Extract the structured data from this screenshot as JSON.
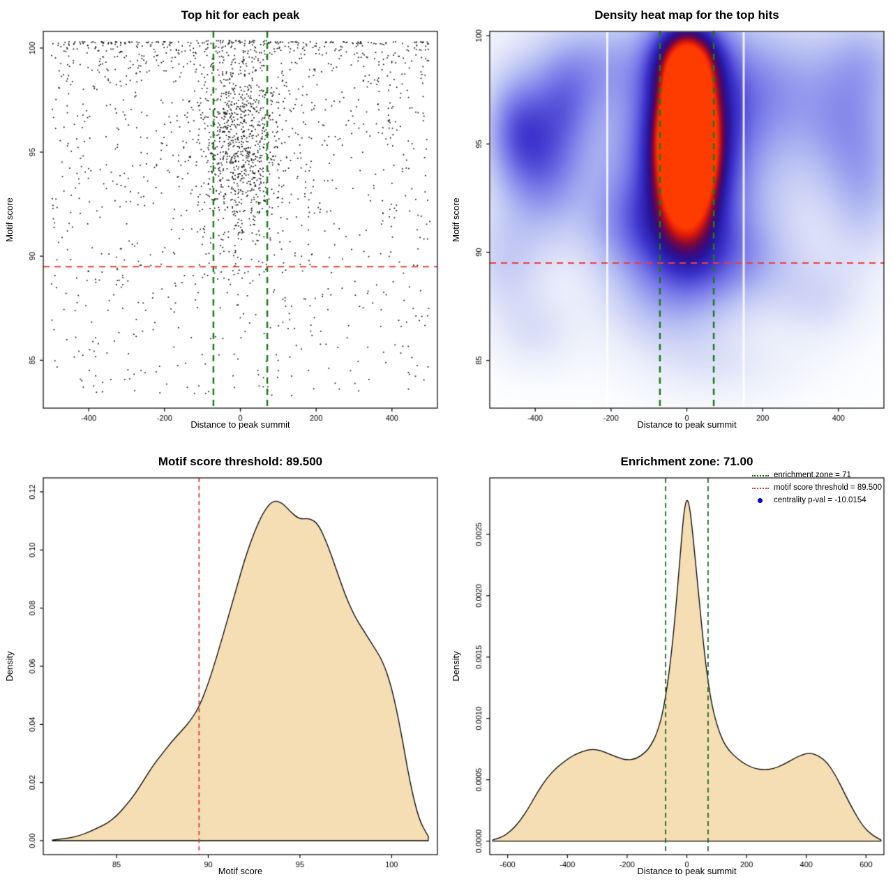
{
  "page": {
    "background": "#ffffff"
  },
  "chart_data": [
    {
      "type": "scatter",
      "title": "Top hit for each peak",
      "xlabel": "Distance to peak summit",
      "ylabel": "Motif score",
      "xlim": [
        -520,
        520
      ],
      "ylim": [
        82.7,
        100.8
      ],
      "xticks": {
        "values": [
          -400,
          -200,
          0,
          200,
          400
        ],
        "labels": [
          "-400",
          "-200",
          "0",
          "200",
          "400"
        ]
      },
      "yticks": {
        "values": [
          85,
          90,
          95,
          100
        ],
        "labels": [
          "85",
          "90",
          "95",
          "100"
        ]
      },
      "point_color": "#111111",
      "points_spec": {
        "seed": 42,
        "background": {
          "n": 1300,
          "xmin": -500,
          "xmax": 500,
          "y_base": 100.3,
          "y_span": 17,
          "y_pow": 2.2
        },
        "cluster": {
          "n": 900,
          "x_mean": 0,
          "x_sd": 55,
          "y_mean": 95.3,
          "y_sd": 2.6
        }
      },
      "lines": [
        {
          "type": "v",
          "value": -71,
          "color": "#1b7a1b",
          "width": 2.5,
          "dash": [
            9,
            7
          ]
        },
        {
          "type": "v",
          "value": 71,
          "color": "#1b7a1b",
          "width": 2.5,
          "dash": [
            9,
            7
          ]
        },
        {
          "type": "h",
          "value": 89.5,
          "color": "#f03b3b",
          "width": 2,
          "dash": [
            9,
            7
          ]
        }
      ]
    },
    {
      "type": "heatmap",
      "title": "Density heat map for the top hits",
      "xlabel": "Distance to peak summit",
      "ylabel": "Motif score",
      "xlim": [
        -520,
        520
      ],
      "ylim": [
        82.8,
        100.2
      ],
      "xticks": {
        "values": [
          -400,
          -200,
          0,
          200,
          400
        ],
        "labels": [
          "-400",
          "-200",
          "0",
          "200",
          "400"
        ]
      },
      "yticks": {
        "values": [
          85,
          90,
          95,
          100
        ],
        "labels": [
          "85",
          "90",
          "95",
          "100"
        ]
      },
      "hotspot": {
        "x": 0,
        "y": 95.8
      },
      "blobs": [
        [
          0,
          95.8,
          38,
          1.6,
          1.15
        ],
        [
          0,
          94.0,
          50,
          2.0,
          0.8
        ],
        [
          2,
          96.3,
          80,
          2.9,
          0.5
        ],
        [
          0,
          98.9,
          58,
          1.2,
          0.5
        ],
        [
          0,
          93.3,
          135,
          3.6,
          0.32
        ],
        [
          0,
          90.2,
          95,
          1.7,
          0.22
        ],
        [
          -380,
          94.3,
          75,
          2.2,
          0.3
        ],
        [
          -455,
          95.8,
          55,
          1.7,
          0.22
        ],
        [
          -320,
          97,
          60,
          1.5,
          0.16
        ],
        [
          200,
          97.6,
          110,
          2.0,
          0.17
        ],
        [
          420,
          96.2,
          90,
          2.2,
          0.18
        ],
        [
          470,
          92.8,
          70,
          2.2,
          0.14
        ],
        [
          -150,
          91.3,
          85,
          1.6,
          0.14
        ],
        [
          160,
          89.6,
          95,
          1.4,
          0.12
        ],
        [
          -60,
          87.4,
          120,
          1.6,
          0.1
        ],
        [
          350,
          87.8,
          90,
          1.4,
          0.1
        ],
        [
          -400,
          86.2,
          80,
          1.3,
          0.09
        ],
        [
          0,
          96,
          470,
          5.5,
          0.13
        ],
        [
          -250,
          98.7,
          100,
          1.4,
          0.14
        ],
        [
          100,
          84.6,
          150,
          1.2,
          0.07
        ],
        [
          -480,
          89.5,
          70,
          1.8,
          0.12
        ],
        [
          480,
          99,
          80,
          1.5,
          0.12
        ]
      ],
      "colormap": [
        {
          "t": 0.0,
          "rgb": [
            255,
            255,
            255
          ]
        },
        {
          "t": 0.08,
          "rgb": [
            235,
            238,
            250
          ]
        },
        {
          "t": 0.22,
          "rgb": [
            180,
            188,
            242
          ]
        },
        {
          "t": 0.38,
          "rgb": [
            118,
            118,
            232
          ]
        },
        {
          "t": 0.52,
          "rgb": [
            62,
            52,
            205
          ]
        },
        {
          "t": 0.64,
          "rgb": [
            38,
            22,
            158
          ]
        },
        {
          "t": 0.72,
          "rgb": [
            64,
            8,
            118
          ]
        },
        {
          "t": 0.8,
          "rgb": [
            122,
            8,
            62
          ]
        },
        {
          "t": 0.87,
          "rgb": [
            190,
            18,
            22
          ]
        },
        {
          "t": 0.93,
          "rgb": [
            235,
            35,
            8
          ]
        },
        {
          "t": 1.0,
          "rgb": [
            255,
            60,
            0
          ]
        }
      ],
      "white_streaks": [
        -210,
        150
      ],
      "lines": [
        {
          "type": "v",
          "value": -71,
          "color": "#1b7a1b",
          "width": 2.5,
          "dash": [
            9,
            7
          ]
        },
        {
          "type": "v",
          "value": 71,
          "color": "#1b7a1b",
          "width": 2.5,
          "dash": [
            9,
            7
          ]
        },
        {
          "type": "h",
          "value": 89.5,
          "color": "#f03b3b",
          "width": 2,
          "dash": [
            9,
            7
          ]
        }
      ]
    },
    {
      "type": "area",
      "title": "Motif score threshold: 89.500",
      "xlabel": "Motif score",
      "ylabel": "Density",
      "xlim": [
        81,
        102.5
      ],
      "ylim": [
        -0.0048,
        0.1248
      ],
      "xticks": {
        "values": [
          85,
          90,
          95,
          100
        ],
        "labels": [
          "85",
          "90",
          "95",
          "100"
        ]
      },
      "yticks": {
        "values": [
          0,
          0.02,
          0.04,
          0.06,
          0.08,
          0.1,
          0.12
        ],
        "labels": [
          "0.00",
          "0.02",
          "0.04",
          "0.06",
          "0.08",
          "0.10",
          "0.12"
        ]
      },
      "fill": "#f5deb3",
      "stroke": "#000000",
      "motif_score_threshold": 89.5,
      "curve": [
        [
          81.5,
          0.0002
        ],
        [
          82,
          0.0006
        ],
        [
          82.5,
          0.001
        ],
        [
          83,
          0.0018
        ],
        [
          83.5,
          0.003
        ],
        [
          84,
          0.0045
        ],
        [
          84.5,
          0.006
        ],
        [
          85,
          0.0085
        ],
        [
          85.5,
          0.012
        ],
        [
          86,
          0.016
        ],
        [
          86.5,
          0.021
        ],
        [
          87,
          0.026
        ],
        [
          87.5,
          0.03
        ],
        [
          88,
          0.034
        ],
        [
          88.5,
          0.0375
        ],
        [
          89,
          0.041
        ],
        [
          89.5,
          0.046
        ],
        [
          90,
          0.054
        ],
        [
          90.5,
          0.064
        ],
        [
          91,
          0.075
        ],
        [
          91.5,
          0.086
        ],
        [
          92,
          0.097
        ],
        [
          92.5,
          0.106
        ],
        [
          93,
          0.113
        ],
        [
          93.5,
          0.117
        ],
        [
          94,
          0.1165
        ],
        [
          94.5,
          0.113
        ],
        [
          95,
          0.1105
        ],
        [
          95.5,
          0.111
        ],
        [
          96,
          0.109
        ],
        [
          96.5,
          0.102
        ],
        [
          97,
          0.093
        ],
        [
          97.5,
          0.084
        ],
        [
          98,
          0.077
        ],
        [
          98.5,
          0.072
        ],
        [
          99,
          0.067
        ],
        [
          99.5,
          0.062
        ],
        [
          100,
          0.053
        ],
        [
          100.5,
          0.038
        ],
        [
          101,
          0.02
        ],
        [
          101.5,
          0.007
        ],
        [
          102,
          0.0015
        ]
      ],
      "lines": [
        {
          "type": "v",
          "value": 89.5,
          "color": "#d43c3c",
          "width": 1.8,
          "dash": [
            6,
            5
          ]
        }
      ]
    },
    {
      "type": "area",
      "title": "Enrichment zone: 71.00",
      "xlabel": "Distance to peak summit",
      "ylabel": "Density",
      "xlim": [
        -660,
        660
      ],
      "ylim": [
        -0.00011,
        0.00296
      ],
      "xticks": {
        "values": [
          -600,
          -400,
          -200,
          0,
          200,
          400,
          600
        ],
        "labels": [
          "-600",
          "-400",
          "-200",
          "0",
          "200",
          "400",
          "600"
        ]
      },
      "yticks": {
        "values": [
          0,
          0.0005,
          0.001,
          0.0015,
          0.002,
          0.0025
        ],
        "labels": [
          "0.0000",
          "0.0005",
          "0.0010",
          "0.0015",
          "0.0020",
          "0.0025"
        ]
      },
      "fill": "#f5deb3",
      "stroke": "#000000",
      "enrichment_zone": 71,
      "centrality_p_val": -10.0154,
      "curve": [
        [
          -650,
          1e-05
        ],
        [
          -620,
          3e-05
        ],
        [
          -590,
          8e-05
        ],
        [
          -560,
          0.00016
        ],
        [
          -530,
          0.00027
        ],
        [
          -500,
          0.0004
        ],
        [
          -470,
          0.00051
        ],
        [
          -440,
          0.00059
        ],
        [
          -410,
          0.00065
        ],
        [
          -380,
          0.0007
        ],
        [
          -350,
          0.00073
        ],
        [
          -320,
          0.00075
        ],
        [
          -290,
          0.00074
        ],
        [
          -260,
          0.00071
        ],
        [
          -230,
          0.00068
        ],
        [
          -200,
          0.00066
        ],
        [
          -170,
          0.00067
        ],
        [
          -140,
          0.00072
        ],
        [
          -120,
          0.00078
        ],
        [
          -100,
          0.00088
        ],
        [
          -80,
          0.00105
        ],
        [
          -60,
          0.00135
        ],
        [
          -40,
          0.0018
        ],
        [
          -20,
          0.0024
        ],
        [
          -10,
          0.00268
        ],
        [
          0,
          0.0028
        ],
        [
          10,
          0.00272
        ],
        [
          20,
          0.0025
        ],
        [
          40,
          0.002
        ],
        [
          60,
          0.0015
        ],
        [
          80,
          0.00115
        ],
        [
          100,
          0.00095
        ],
        [
          120,
          0.00082
        ],
        [
          140,
          0.00074
        ],
        [
          170,
          0.00067
        ],
        [
          200,
          0.00062
        ],
        [
          230,
          0.00059
        ],
        [
          260,
          0.00058
        ],
        [
          290,
          0.00059
        ],
        [
          320,
          0.00062
        ],
        [
          350,
          0.00066
        ],
        [
          380,
          0.0007
        ],
        [
          410,
          0.00072
        ],
        [
          440,
          0.0007
        ],
        [
          470,
          0.00064
        ],
        [
          500,
          0.00053
        ],
        [
          530,
          0.00038
        ],
        [
          560,
          0.00024
        ],
        [
          590,
          0.00012
        ],
        [
          620,
          5e-05
        ],
        [
          650,
          1e-05
        ]
      ],
      "lines": [
        {
          "type": "v",
          "value": -71,
          "color": "#1b6b1b",
          "width": 1.8,
          "dash": [
            7,
            5
          ]
        },
        {
          "type": "v",
          "value": 71,
          "color": "#1b6b1b",
          "width": 1.8,
          "dash": [
            7,
            5
          ]
        }
      ],
      "legend": {
        "items": [
          {
            "label": "enrichment zone = 71",
            "color": "#1b6b1b",
            "marker": "dotted-line"
          },
          {
            "label": "motif score threshold = 89.500",
            "color": "#d43c3c",
            "marker": "dotted-line"
          },
          {
            "label": "centrality p-val = -10.0154",
            "color": "#0000cd",
            "marker": "point"
          }
        ]
      }
    }
  ]
}
